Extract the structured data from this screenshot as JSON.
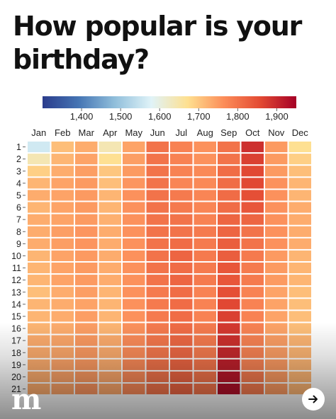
{
  "header": {
    "title": "How popular is your birthday?"
  },
  "brand": {
    "logo_mark": "m"
  },
  "controls": {
    "next_icon": "arrow-right-icon"
  },
  "chart_data": {
    "type": "heatmap",
    "title": "How popular is your birthday?",
    "xlabel": "",
    "ylabel": "",
    "x_categories": [
      "Jan",
      "Feb",
      "Mar",
      "Apr",
      "May",
      "Jun",
      "Jul",
      "Aug",
      "Sep",
      "Oct",
      "Nov",
      "Dec"
    ],
    "y_categories": [
      "1",
      "2",
      "3",
      "4",
      "5",
      "6",
      "7",
      "8",
      "9",
      "10",
      "11",
      "12",
      "13",
      "14",
      "15",
      "16",
      "17",
      "18",
      "19",
      "20",
      "21"
    ],
    "colorbar": {
      "min": 1300,
      "max": 1950,
      "ticks": [
        1400,
        1500,
        1600,
        1700,
        1800,
        1900
      ],
      "tick_labels": [
        "1,400",
        "1,500",
        "1,600",
        "1,700",
        "1,800",
        "1,900"
      ],
      "colors": [
        "#2b3c8c",
        "#4575b4",
        "#91bfdb",
        "#e0f3f8",
        "#fee090",
        "#fc8d59",
        "#e34a33",
        "#a50026"
      ]
    },
    "values": [
      [
        1560,
        1710,
        1730,
        1640,
        1740,
        1800,
        1780,
        1760,
        1800,
        1890,
        1750,
        1670
      ],
      [
        1640,
        1720,
        1740,
        1670,
        1745,
        1800,
        1780,
        1760,
        1800,
        1870,
        1750,
        1690
      ],
      [
        1690,
        1730,
        1745,
        1700,
        1750,
        1800,
        1780,
        1770,
        1810,
        1860,
        1750,
        1710
      ],
      [
        1720,
        1740,
        1750,
        1710,
        1755,
        1800,
        1775,
        1770,
        1810,
        1860,
        1760,
        1720
      ],
      [
        1730,
        1740,
        1750,
        1720,
        1760,
        1800,
        1790,
        1775,
        1810,
        1850,
        1760,
        1720
      ],
      [
        1720,
        1740,
        1750,
        1720,
        1760,
        1800,
        1790,
        1775,
        1810,
        1840,
        1760,
        1730
      ],
      [
        1730,
        1740,
        1750,
        1725,
        1760,
        1800,
        1800,
        1780,
        1820,
        1820,
        1760,
        1730
      ],
      [
        1730,
        1745,
        1755,
        1730,
        1760,
        1800,
        1800,
        1790,
        1820,
        1800,
        1760,
        1730
      ],
      [
        1730,
        1745,
        1755,
        1730,
        1760,
        1800,
        1810,
        1790,
        1830,
        1800,
        1760,
        1730
      ],
      [
        1720,
        1740,
        1750,
        1730,
        1760,
        1800,
        1820,
        1790,
        1830,
        1790,
        1750,
        1720
      ],
      [
        1720,
        1740,
        1750,
        1730,
        1760,
        1800,
        1810,
        1790,
        1840,
        1790,
        1750,
        1720
      ],
      [
        1720,
        1740,
        1750,
        1730,
        1760,
        1800,
        1820,
        1790,
        1840,
        1790,
        1750,
        1720
      ],
      [
        1710,
        1730,
        1745,
        1720,
        1760,
        1790,
        1810,
        1780,
        1850,
        1780,
        1740,
        1710
      ],
      [
        1720,
        1730,
        1740,
        1720,
        1760,
        1790,
        1810,
        1780,
        1860,
        1780,
        1740,
        1710
      ],
      [
        1720,
        1730,
        1745,
        1720,
        1760,
        1790,
        1810,
        1780,
        1870,
        1780,
        1740,
        1710
      ],
      [
        1720,
        1730,
        1745,
        1720,
        1760,
        1790,
        1810,
        1790,
        1880,
        1780,
        1740,
        1710
      ],
      [
        1730,
        1735,
        1750,
        1730,
        1765,
        1795,
        1815,
        1790,
        1890,
        1780,
        1745,
        1720
      ],
      [
        1730,
        1735,
        1750,
        1730,
        1765,
        1795,
        1815,
        1790,
        1900,
        1780,
        1745,
        1720
      ],
      [
        1730,
        1740,
        1750,
        1730,
        1770,
        1800,
        1820,
        1800,
        1910,
        1780,
        1750,
        1720
      ],
      [
        1730,
        1740,
        1750,
        1735,
        1770,
        1800,
        1820,
        1800,
        1920,
        1790,
        1750,
        1720
      ],
      [
        1730,
        1740,
        1755,
        1735,
        1770,
        1800,
        1820,
        1800,
        1930,
        1790,
        1750,
        1720
      ]
    ]
  }
}
